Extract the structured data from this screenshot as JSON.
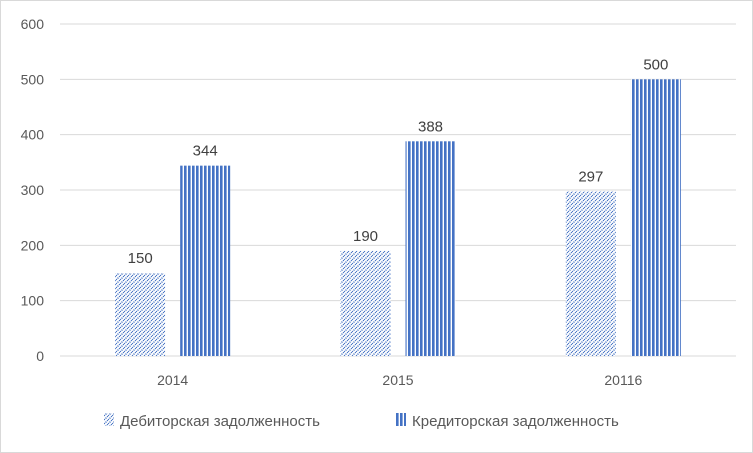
{
  "chart_data": {
    "type": "bar",
    "categories": [
      "2014",
      "2015",
      "20116"
    ],
    "series": [
      {
        "name": "Дебиторская задолженность",
        "values": [
          150,
          190,
          297
        ],
        "color": "#4472c4",
        "pattern": "dotted-diagonal"
      },
      {
        "name": "Кредиторская задолженность",
        "values": [
          344,
          388,
          500
        ],
        "color": "#4472c4",
        "pattern": "vertical-stripes"
      }
    ],
    "y_ticks": [
      "0",
      "100",
      "200",
      "300",
      "400",
      "500",
      "600"
    ],
    "ylim": [
      0,
      600
    ],
    "grid": true,
    "legend_position": "bottom",
    "data_labels": true,
    "colors": {
      "gridline": "#d9d9d9",
      "axis_text": "#595959",
      "bar_blue": "#4472c4"
    }
  }
}
